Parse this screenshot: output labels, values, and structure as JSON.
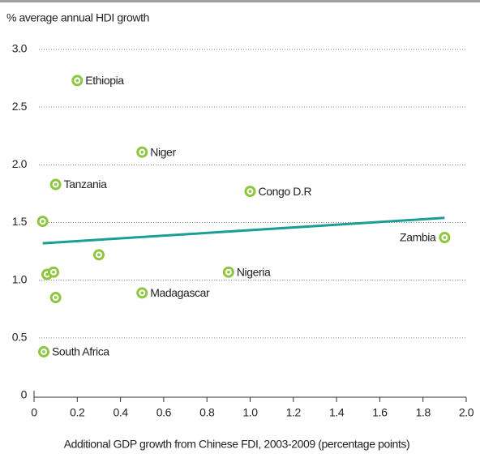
{
  "chart_data": {
    "type": "scatter",
    "ylabel": "% average annual HDI growth",
    "xlabel": "Additional GDP growth from Chinese FDI, 2003-2009 (percentage points)",
    "x": [
      0.2,
      0.5,
      0.1,
      1.0,
      0.04,
      1.9,
      0.3,
      0.9,
      0.06,
      0.09,
      0.5,
      0.1,
      0.045
    ],
    "values": [
      2.73,
      2.11,
      1.83,
      1.77,
      1.51,
      1.37,
      1.22,
      1.07,
      1.05,
      1.07,
      0.89,
      0.85,
      0.38
    ],
    "labels": [
      "Ethiopia",
      "Niger",
      "Tanzania",
      "Congo D.R",
      null,
      "Zambia",
      null,
      "Nigeria",
      null,
      null,
      "Madagascar",
      null,
      "South Africa"
    ],
    "color": "#8dc63f",
    "trendline": {
      "x": [
        0.04,
        1.9
      ],
      "values": [
        1.32,
        1.54
      ],
      "color": "#1a9e96"
    },
    "xlim": [
      0,
      2.0
    ],
    "ylim": [
      0,
      3.0
    ],
    "xticks": [
      0,
      0.2,
      0.4,
      0.6,
      0.8,
      {
        "value": 1.0,
        "label": "1.0"
      },
      1.2,
      1.4,
      1.6,
      1.8,
      {
        "value": 2.0,
        "label": "2.0"
      }
    ],
    "yticks": [
      0,
      0.5,
      {
        "value": 1.0,
        "label": "1.0"
      },
      1.5,
      {
        "value": 2.0,
        "label": "2.0"
      },
      2.5,
      {
        "value": 3.0,
        "label": "3.0"
      }
    ],
    "grid": true
  }
}
